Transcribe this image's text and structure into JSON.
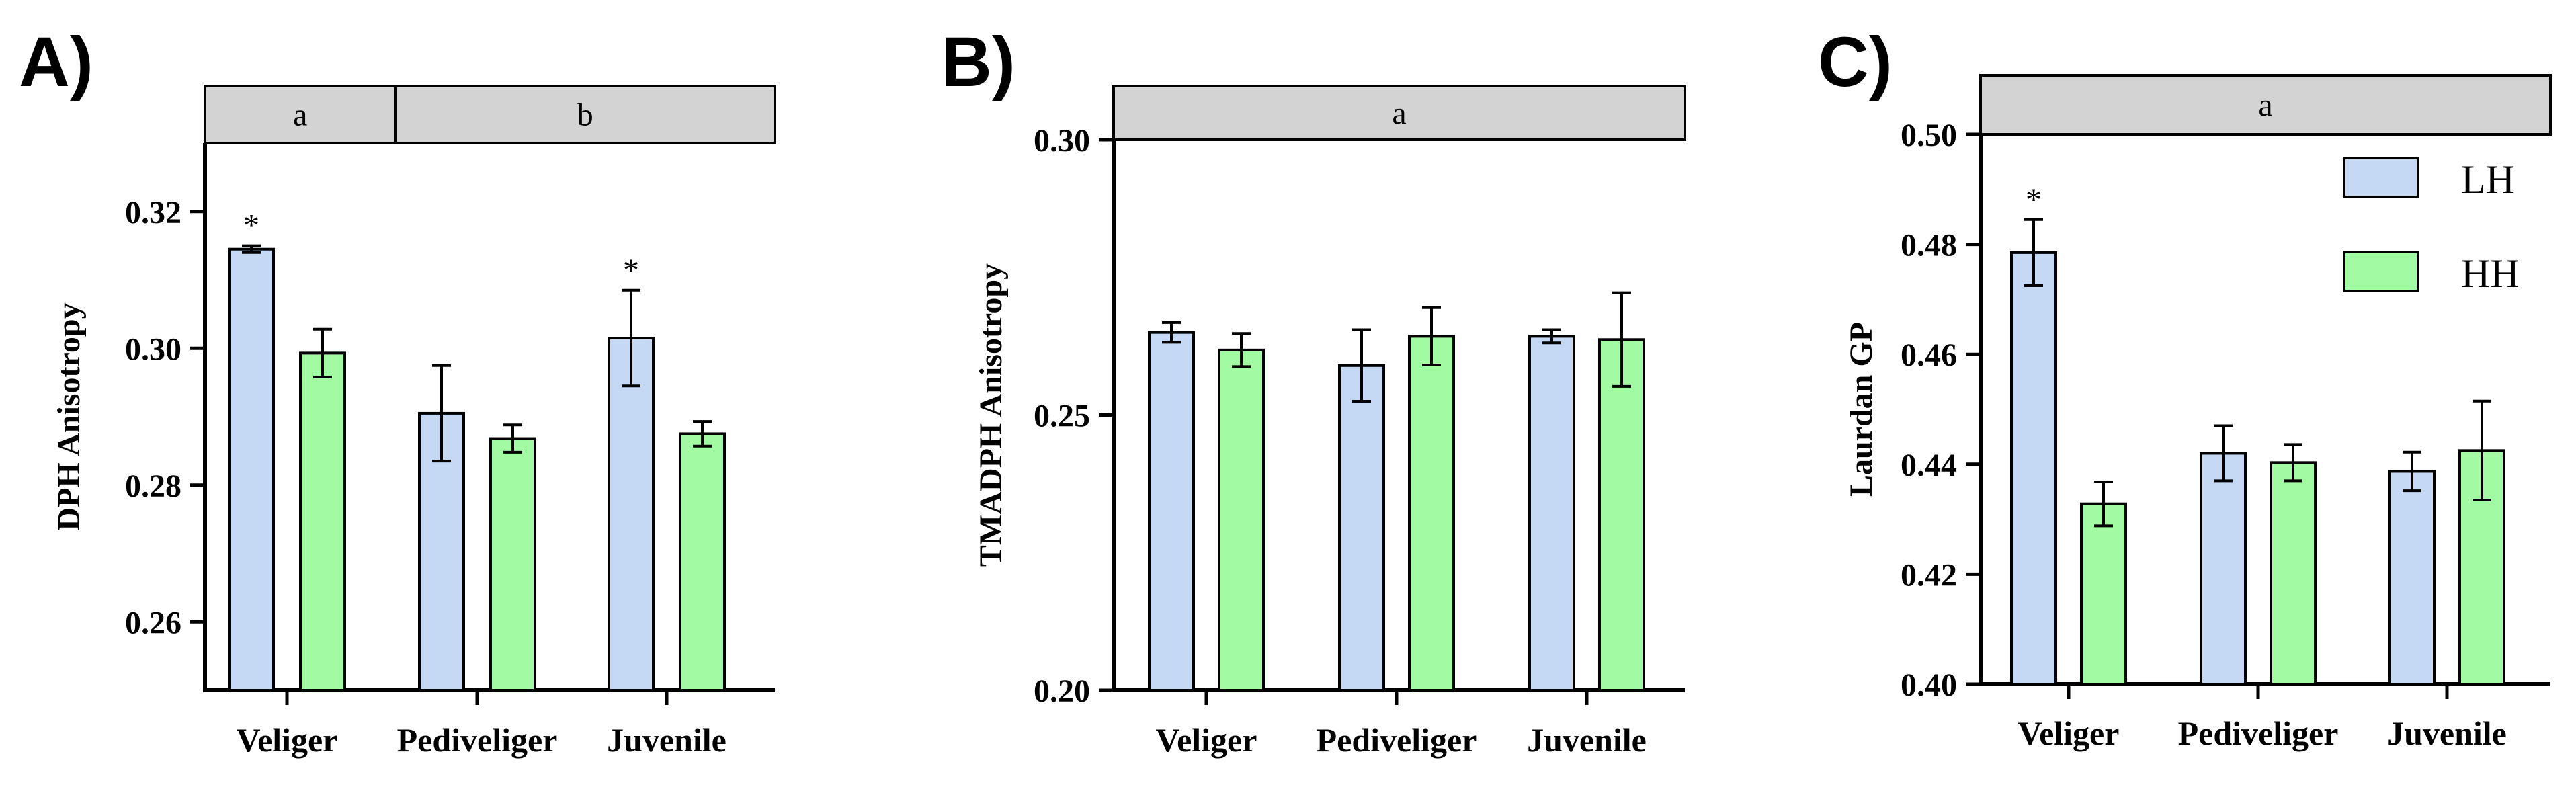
{
  "colors": {
    "LH": "#c5d9f4",
    "HH": "#a2fba2",
    "strip": "#d3d3d3",
    "stroke": "#000000"
  },
  "legend": [
    {
      "name": "LH",
      "color": "#c5d9f4"
    },
    {
      "name": "HH",
      "color": "#a2fba2"
    }
  ],
  "chart_data": [
    {
      "panel": "A)",
      "type": "bar",
      "ylabel": "DPH Anisotropy",
      "ylim": [
        0.25,
        0.33
      ],
      "yticks": [
        "0.26",
        "0.28",
        "0.30",
        "0.32"
      ],
      "categories": [
        "Veliger",
        "Pediveliger",
        "Juvenile"
      ],
      "series": [
        {
          "name": "LH",
          "values": [
            0.3145,
            0.2905,
            0.3015
          ],
          "errors": [
            0.0005,
            0.007,
            0.007
          ]
        },
        {
          "name": "HH",
          "values": [
            0.2993,
            0.2868,
            0.2875
          ],
          "errors": [
            0.0035,
            0.002,
            0.0018
          ]
        }
      ],
      "significance": [
        {
          "category": "Veliger",
          "series": "LH",
          "text": "*"
        },
        {
          "category": "Juvenile",
          "series": "LH",
          "text": "*"
        }
      ],
      "strips": [
        {
          "text": "a",
          "span": [
            "Veliger"
          ]
        },
        {
          "text": "b",
          "span": [
            "Pediveliger",
            "Juvenile"
          ]
        }
      ]
    },
    {
      "panel": "B)",
      "type": "bar",
      "ylabel": "TMADPH Anisotropy",
      "ylim": [
        0.2,
        0.3
      ],
      "yticks": [
        "0.20",
        "0.25",
        "0.30"
      ],
      "categories": [
        "Veliger",
        "Pediveliger",
        "Juvenile"
      ],
      "series": [
        {
          "name": "LH",
          "values": [
            0.265,
            0.259,
            0.2643
          ],
          "errors": [
            0.0018,
            0.0065,
            0.0012
          ]
        },
        {
          "name": "HH",
          "values": [
            0.2618,
            0.2643,
            0.2637
          ],
          "errors": [
            0.003,
            0.0052,
            0.0085
          ]
        }
      ],
      "significance": [],
      "strips": [
        {
          "text": "a",
          "span": [
            "Veliger",
            "Pediveliger",
            "Juvenile"
          ]
        }
      ]
    },
    {
      "panel": "C)",
      "type": "bar",
      "ylabel": "Laurdan GP",
      "ylim": [
        0.4,
        0.5
      ],
      "yticks": [
        "0.40",
        "0.42",
        "0.44",
        "0.46",
        "0.48",
        "0.50"
      ],
      "categories": [
        "Veliger",
        "Pediveliger",
        "Juvenile"
      ],
      "series": [
        {
          "name": "LH",
          "values": [
            0.4785,
            0.442,
            0.4387
          ],
          "errors": [
            0.006,
            0.005,
            0.0035
          ]
        },
        {
          "name": "HH",
          "values": [
            0.4328,
            0.4403,
            0.4425
          ],
          "errors": [
            0.004,
            0.0033,
            0.009
          ]
        }
      ],
      "significance": [
        {
          "category": "Veliger",
          "series": "LH",
          "text": "*"
        }
      ],
      "strips": [
        {
          "text": "a",
          "span": [
            "Veliger",
            "Pediveliger",
            "Juvenile"
          ]
        }
      ]
    }
  ]
}
